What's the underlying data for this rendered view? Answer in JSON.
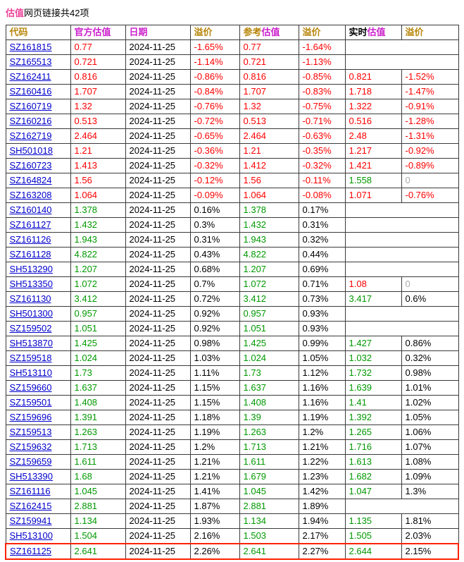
{
  "title": {
    "highlight": "估值",
    "rest": "网页链接共42项"
  },
  "colors": {
    "negative": "#fe0000",
    "positive": "#009900",
    "neutral_zero": "#aaaaaa",
    "link": "#0000cc",
    "header_magenta": "#cc22cc",
    "header_gold": "#b8860b",
    "title_pink": "#ee4499",
    "highlight_border": "#ff2200"
  },
  "table": {
    "headers": [
      {
        "name": "code",
        "segments": [
          [
            "代码",
            "gold"
          ]
        ]
      },
      {
        "name": "official",
        "segments": [
          [
            "官方估值",
            "magenta"
          ]
        ]
      },
      {
        "name": "date",
        "segments": [
          [
            "日期",
            "magenta"
          ]
        ]
      },
      {
        "name": "premium1",
        "segments": [
          [
            "溢价",
            "gold"
          ]
        ]
      },
      {
        "name": "reference",
        "segments": [
          [
            "参考",
            "gold"
          ],
          [
            "估值",
            "magenta"
          ]
        ]
      },
      {
        "name": "premium2",
        "segments": [
          [
            "溢价",
            "gold"
          ]
        ]
      },
      {
        "name": "realtime",
        "segments": [
          [
            "实时",
            "black"
          ],
          [
            "估值",
            "magenta"
          ]
        ]
      },
      {
        "name": "premium3",
        "segments": [
          [
            "溢价",
            "gold"
          ]
        ]
      }
    ],
    "rows": [
      {
        "code": "SZ161815",
        "cells": [
          [
            "0.77",
            "red"
          ],
          [
            "2024-11-25",
            "black"
          ],
          [
            "-1.65%",
            "red"
          ],
          [
            "0.77",
            "red"
          ],
          [
            "-1.64%",
            "red"
          ],
          null
        ]
      },
      {
        "code": "SZ165513",
        "cells": [
          [
            "0.721",
            "red"
          ],
          [
            "2024-11-25",
            "black"
          ],
          [
            "-1.14%",
            "red"
          ],
          [
            "0.721",
            "red"
          ],
          [
            "-1.13%",
            "red"
          ],
          null
        ]
      },
      {
        "code": "SZ162411",
        "cells": [
          [
            "0.816",
            "red"
          ],
          [
            "2024-11-25",
            "black"
          ],
          [
            "-0.86%",
            "red"
          ],
          [
            "0.816",
            "red"
          ],
          [
            "-0.85%",
            "red"
          ],
          [
            "0.821",
            "red"
          ],
          [
            "-1.52%",
            "red"
          ]
        ]
      },
      {
        "code": "SZ160416",
        "cells": [
          [
            "1.707",
            "red"
          ],
          [
            "2024-11-25",
            "black"
          ],
          [
            "-0.84%",
            "red"
          ],
          [
            "1.707",
            "red"
          ],
          [
            "-0.83%",
            "red"
          ],
          [
            "1.718",
            "red"
          ],
          [
            "-1.47%",
            "red"
          ]
        ]
      },
      {
        "code": "SZ160719",
        "cells": [
          [
            "1.32",
            "red"
          ],
          [
            "2024-11-25",
            "black"
          ],
          [
            "-0.76%",
            "red"
          ],
          [
            "1.32",
            "red"
          ],
          [
            "-0.75%",
            "red"
          ],
          [
            "1.322",
            "red"
          ],
          [
            "-0.91%",
            "red"
          ]
        ]
      },
      {
        "code": "SZ160216",
        "cells": [
          [
            "0.513",
            "red"
          ],
          [
            "2024-11-25",
            "black"
          ],
          [
            "-0.72%",
            "red"
          ],
          [
            "0.513",
            "red"
          ],
          [
            "-0.71%",
            "red"
          ],
          [
            "0.516",
            "red"
          ],
          [
            "-1.28%",
            "red"
          ]
        ]
      },
      {
        "code": "SZ162719",
        "cells": [
          [
            "2.464",
            "red"
          ],
          [
            "2024-11-25",
            "black"
          ],
          [
            "-0.65%",
            "red"
          ],
          [
            "2.464",
            "red"
          ],
          [
            "-0.63%",
            "red"
          ],
          [
            "2.48",
            "red"
          ],
          [
            "-1.31%",
            "red"
          ]
        ]
      },
      {
        "code": "SH501018",
        "cells": [
          [
            "1.21",
            "red"
          ],
          [
            "2024-11-25",
            "black"
          ],
          [
            "-0.36%",
            "red"
          ],
          [
            "1.21",
            "red"
          ],
          [
            "-0.35%",
            "red"
          ],
          [
            "1.217",
            "red"
          ],
          [
            "-0.92%",
            "red"
          ]
        ]
      },
      {
        "code": "SZ160723",
        "cells": [
          [
            "1.413",
            "red"
          ],
          [
            "2024-11-25",
            "black"
          ],
          [
            "-0.32%",
            "red"
          ],
          [
            "1.412",
            "red"
          ],
          [
            "-0.32%",
            "red"
          ],
          [
            "1.421",
            "red"
          ],
          [
            "-0.89%",
            "red"
          ]
        ]
      },
      {
        "code": "SZ164824",
        "cells": [
          [
            "1.56",
            "red"
          ],
          [
            "2024-11-25",
            "black"
          ],
          [
            "-0.12%",
            "red"
          ],
          [
            "1.56",
            "red"
          ],
          [
            "-0.11%",
            "red"
          ],
          [
            "1.558",
            "green"
          ],
          [
            "0",
            "gray"
          ]
        ]
      },
      {
        "code": "SZ163208",
        "cells": [
          [
            "1.064",
            "red"
          ],
          [
            "2024-11-25",
            "black"
          ],
          [
            "-0.09%",
            "red"
          ],
          [
            "1.064",
            "red"
          ],
          [
            "-0.08%",
            "red"
          ],
          [
            "1.071",
            "red"
          ],
          [
            "-0.76%",
            "red"
          ]
        ]
      },
      {
        "code": "SZ160140",
        "cells": [
          [
            "1.378",
            "green"
          ],
          [
            "2024-11-25",
            "black"
          ],
          [
            "0.16%",
            "black"
          ],
          [
            "1.378",
            "green"
          ],
          [
            "0.17%",
            "black"
          ],
          null
        ]
      },
      {
        "code": "SZ161127",
        "cells": [
          [
            "1.432",
            "green"
          ],
          [
            "2024-11-25",
            "black"
          ],
          [
            "0.3%",
            "black"
          ],
          [
            "1.432",
            "green"
          ],
          [
            "0.31%",
            "black"
          ],
          null
        ]
      },
      {
        "code": "SZ161126",
        "cells": [
          [
            "1.943",
            "green"
          ],
          [
            "2024-11-25",
            "black"
          ],
          [
            "0.31%",
            "black"
          ],
          [
            "1.943",
            "green"
          ],
          [
            "0.32%",
            "black"
          ],
          null
        ]
      },
      {
        "code": "SZ161128",
        "cells": [
          [
            "4.822",
            "green"
          ],
          [
            "2024-11-25",
            "black"
          ],
          [
            "0.43%",
            "black"
          ],
          [
            "4.822",
            "green"
          ],
          [
            "0.44%",
            "black"
          ],
          null
        ]
      },
      {
        "code": "SH513290",
        "cells": [
          [
            "1.207",
            "green"
          ],
          [
            "2024-11-25",
            "black"
          ],
          [
            "0.68%",
            "black"
          ],
          [
            "1.207",
            "green"
          ],
          [
            "0.69%",
            "black"
          ],
          null
        ]
      },
      {
        "code": "SH513350",
        "cells": [
          [
            "1.072",
            "green"
          ],
          [
            "2024-11-25",
            "black"
          ],
          [
            "0.7%",
            "black"
          ],
          [
            "1.072",
            "green"
          ],
          [
            "0.71%",
            "black"
          ],
          [
            "1.08",
            "red"
          ],
          [
            "0",
            "gray"
          ]
        ]
      },
      {
        "code": "SZ161130",
        "cells": [
          [
            "3.412",
            "green"
          ],
          [
            "2024-11-25",
            "black"
          ],
          [
            "0.72%",
            "black"
          ],
          [
            "3.412",
            "green"
          ],
          [
            "0.73%",
            "black"
          ],
          [
            "3.417",
            "green"
          ],
          [
            "0.6%",
            "black"
          ]
        ]
      },
      {
        "code": "SH501300",
        "cells": [
          [
            "0.957",
            "green"
          ],
          [
            "2024-11-25",
            "black"
          ],
          [
            "0.92%",
            "black"
          ],
          [
            "0.957",
            "green"
          ],
          [
            "0.93%",
            "black"
          ],
          null
        ]
      },
      {
        "code": "SZ159502",
        "cells": [
          [
            "1.051",
            "green"
          ],
          [
            "2024-11-25",
            "black"
          ],
          [
            "0.92%",
            "black"
          ],
          [
            "1.051",
            "green"
          ],
          [
            "0.93%",
            "black"
          ],
          null
        ]
      },
      {
        "code": "SH513870",
        "cells": [
          [
            "1.425",
            "green"
          ],
          [
            "2024-11-25",
            "black"
          ],
          [
            "0.98%",
            "black"
          ],
          [
            "1.425",
            "green"
          ],
          [
            "0.99%",
            "black"
          ],
          [
            "1.427",
            "green"
          ],
          [
            "0.86%",
            "black"
          ]
        ]
      },
      {
        "code": "SZ159518",
        "cells": [
          [
            "1.024",
            "green"
          ],
          [
            "2024-11-25",
            "black"
          ],
          [
            "1.03%",
            "black"
          ],
          [
            "1.024",
            "green"
          ],
          [
            "1.05%",
            "black"
          ],
          [
            "1.032",
            "green"
          ],
          [
            "0.32%",
            "black"
          ]
        ]
      },
      {
        "code": "SH513110",
        "cells": [
          [
            "1.73",
            "green"
          ],
          [
            "2024-11-25",
            "black"
          ],
          [
            "1.11%",
            "black"
          ],
          [
            "1.73",
            "green"
          ],
          [
            "1.12%",
            "black"
          ],
          [
            "1.732",
            "green"
          ],
          [
            "0.98%",
            "black"
          ]
        ]
      },
      {
        "code": "SZ159660",
        "cells": [
          [
            "1.637",
            "green"
          ],
          [
            "2024-11-25",
            "black"
          ],
          [
            "1.15%",
            "black"
          ],
          [
            "1.637",
            "green"
          ],
          [
            "1.16%",
            "black"
          ],
          [
            "1.639",
            "green"
          ],
          [
            "1.01%",
            "black"
          ]
        ]
      },
      {
        "code": "SZ159501",
        "cells": [
          [
            "1.408",
            "green"
          ],
          [
            "2024-11-25",
            "black"
          ],
          [
            "1.15%",
            "black"
          ],
          [
            "1.408",
            "green"
          ],
          [
            "1.16%",
            "black"
          ],
          [
            "1.41",
            "green"
          ],
          [
            "1.02%",
            "black"
          ]
        ]
      },
      {
        "code": "SZ159696",
        "cells": [
          [
            "1.391",
            "green"
          ],
          [
            "2024-11-25",
            "black"
          ],
          [
            "1.18%",
            "black"
          ],
          [
            "1.39",
            "green"
          ],
          [
            "1.19%",
            "black"
          ],
          [
            "1.392",
            "green"
          ],
          [
            "1.05%",
            "black"
          ]
        ]
      },
      {
        "code": "SZ159513",
        "cells": [
          [
            "1.263",
            "green"
          ],
          [
            "2024-11-25",
            "black"
          ],
          [
            "1.19%",
            "black"
          ],
          [
            "1.263",
            "green"
          ],
          [
            "1.2%",
            "black"
          ],
          [
            "1.265",
            "green"
          ],
          [
            "1.06%",
            "black"
          ]
        ]
      },
      {
        "code": "SZ159632",
        "cells": [
          [
            "1.713",
            "green"
          ],
          [
            "2024-11-25",
            "black"
          ],
          [
            "1.2%",
            "black"
          ],
          [
            "1.713",
            "green"
          ],
          [
            "1.21%",
            "black"
          ],
          [
            "1.716",
            "green"
          ],
          [
            "1.07%",
            "black"
          ]
        ]
      },
      {
        "code": "SZ159659",
        "cells": [
          [
            "1.611",
            "green"
          ],
          [
            "2024-11-25",
            "black"
          ],
          [
            "1.21%",
            "black"
          ],
          [
            "1.611",
            "green"
          ],
          [
            "1.22%",
            "black"
          ],
          [
            "1.613",
            "green"
          ],
          [
            "1.08%",
            "black"
          ]
        ]
      },
      {
        "code": "SH513390",
        "cells": [
          [
            "1.68",
            "green"
          ],
          [
            "2024-11-25",
            "black"
          ],
          [
            "1.21%",
            "black"
          ],
          [
            "1.679",
            "green"
          ],
          [
            "1.23%",
            "black"
          ],
          [
            "1.682",
            "green"
          ],
          [
            "1.09%",
            "black"
          ]
        ]
      },
      {
        "code": "SZ161116",
        "cells": [
          [
            "1.045",
            "green"
          ],
          [
            "2024-11-25",
            "black"
          ],
          [
            "1.41%",
            "black"
          ],
          [
            "1.045",
            "green"
          ],
          [
            "1.42%",
            "black"
          ],
          [
            "1.047",
            "green"
          ],
          [
            "1.3%",
            "black"
          ]
        ]
      },
      {
        "code": "SZ162415",
        "cells": [
          [
            "2.881",
            "green"
          ],
          [
            "2024-11-25",
            "black"
          ],
          [
            "1.87%",
            "black"
          ],
          [
            "2.881",
            "green"
          ],
          [
            "1.89%",
            "black"
          ],
          null
        ]
      },
      {
        "code": "SZ159941",
        "cells": [
          [
            "1.134",
            "green"
          ],
          [
            "2024-11-25",
            "black"
          ],
          [
            "1.93%",
            "black"
          ],
          [
            "1.134",
            "green"
          ],
          [
            "1.94%",
            "black"
          ],
          [
            "1.135",
            "green"
          ],
          [
            "1.81%",
            "black"
          ]
        ]
      },
      {
        "code": "SH513100",
        "cells": [
          [
            "1.504",
            "green"
          ],
          [
            "2024-11-25",
            "black"
          ],
          [
            "2.16%",
            "black"
          ],
          [
            "1.503",
            "green"
          ],
          [
            "2.17%",
            "black"
          ],
          [
            "1.505",
            "green"
          ],
          [
            "2.03%",
            "black"
          ]
        ]
      },
      {
        "code": "SZ161125",
        "highlight": true,
        "cells": [
          [
            "2.641",
            "green"
          ],
          [
            "2024-11-25",
            "black"
          ],
          [
            "2.26%",
            "black"
          ],
          [
            "2.641",
            "green"
          ],
          [
            "2.27%",
            "black"
          ],
          [
            "2.644",
            "green"
          ],
          [
            "2.15%",
            "black"
          ]
        ]
      }
    ],
    "highlighted_code": "SZ161125"
  }
}
